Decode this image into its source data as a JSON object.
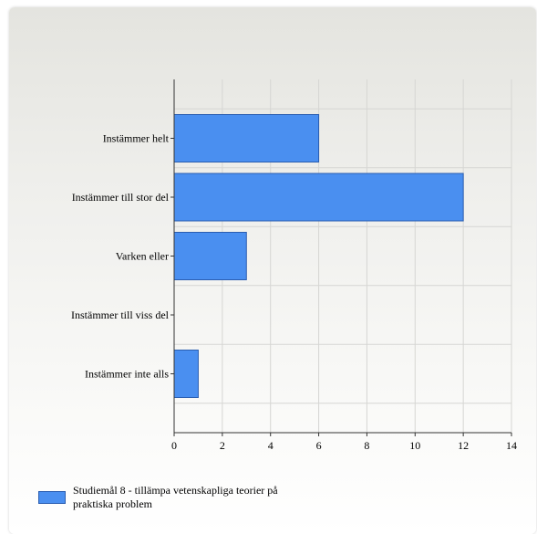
{
  "chart_data": {
    "type": "bar",
    "orientation": "horizontal",
    "categories": [
      "Instämmer helt",
      "Instämmer till stor del",
      "Varken eller",
      "Instämmer till viss del",
      "Instämmer inte alls"
    ],
    "series": [
      {
        "name": "Studiemål 8 - tillämpa vetenskapliga teorier på praktiska problem",
        "values": [
          6,
          12,
          3,
          0,
          1
        ],
        "color": "#4a8ff0"
      }
    ],
    "xticks": [
      "0",
      "2",
      "4",
      "6",
      "8",
      "10",
      "12",
      "14"
    ],
    "xlim": [
      0,
      14
    ],
    "grid": true,
    "legend_position": "bottom-left",
    "title": "",
    "xlabel": "",
    "ylabel": ""
  }
}
